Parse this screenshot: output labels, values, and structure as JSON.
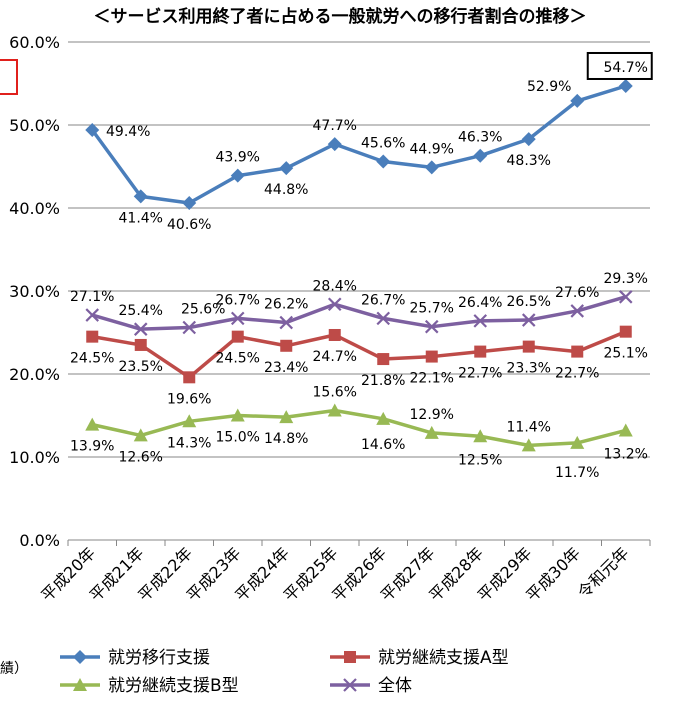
{
  "chart_data": {
    "type": "line",
    "title": "＜サービス利用終了者に占める一般就労への移行者割合の推移＞",
    "categories": [
      "平成20年",
      "平成21年",
      "平成22年",
      "平成23年",
      "平成24年",
      "平成25年",
      "平成26年",
      "平成27年",
      "平成28年",
      "平成29年",
      "平成30年",
      "令和元年"
    ],
    "y_tick_labels": [
      "0.0%",
      "10.0%",
      "20.0%",
      "30.0%",
      "40.0%",
      "50.0%",
      "60.0%"
    ],
    "ylim": [
      0,
      60
    ],
    "grid": true,
    "legend_position": "bottom",
    "series": [
      {
        "name": "就労移行支援",
        "color": "#4a7ebb",
        "marker": "diamond",
        "values": [
          49.4,
          41.4,
          40.6,
          43.9,
          44.8,
          47.7,
          45.6,
          44.9,
          46.3,
          48.3,
          52.9,
          54.7
        ],
        "labels": [
          "49.4%",
          "41.4%",
          "40.6%",
          "43.9%",
          "44.8%",
          "47.7%",
          "45.6%",
          "44.9%",
          "46.3%",
          "48.3%",
          "52.9%",
          "54.7%"
        ]
      },
      {
        "name": "就労継続支援A型",
        "color": "#be4b48",
        "marker": "square",
        "values": [
          24.5,
          23.5,
          19.6,
          24.5,
          23.4,
          24.7,
          21.8,
          22.1,
          22.7,
          23.3,
          22.7,
          25.1
        ],
        "labels": [
          "24.5%",
          "23.5%",
          "19.6%",
          "24.5%",
          "23.4%",
          "24.7%",
          "21.8%",
          "22.1%",
          "22.7%",
          "23.3%",
          "22.7%",
          "25.1%"
        ]
      },
      {
        "name": "就労継続支援B型",
        "color": "#98b954",
        "marker": "triangle",
        "values": [
          13.9,
          12.6,
          14.3,
          15.0,
          14.8,
          15.6,
          14.6,
          12.9,
          12.5,
          11.4,
          11.7,
          13.2
        ],
        "labels": [
          "13.9%",
          "12.6%",
          "14.3%",
          "15.0%",
          "14.8%",
          "15.6%",
          "14.6%",
          "12.9%",
          "12.5%",
          "11.4%",
          "11.7%",
          "13.2%"
        ]
      },
      {
        "name": "全体",
        "color": "#7d60a0",
        "marker": "x",
        "values": [
          27.1,
          25.4,
          25.6,
          26.7,
          26.2,
          28.4,
          26.7,
          25.7,
          26.4,
          26.5,
          27.6,
          29.3
        ],
        "labels": [
          "27.1%",
          "25.4%",
          "25.6%",
          "26.7%",
          "26.2%",
          "28.4%",
          "26.7%",
          "25.7%",
          "26.4%",
          "26.5%",
          "27.6%",
          "29.3%"
        ]
      }
    ],
    "left_fragment_text": "績）",
    "highlight_color": "#e0201c"
  }
}
